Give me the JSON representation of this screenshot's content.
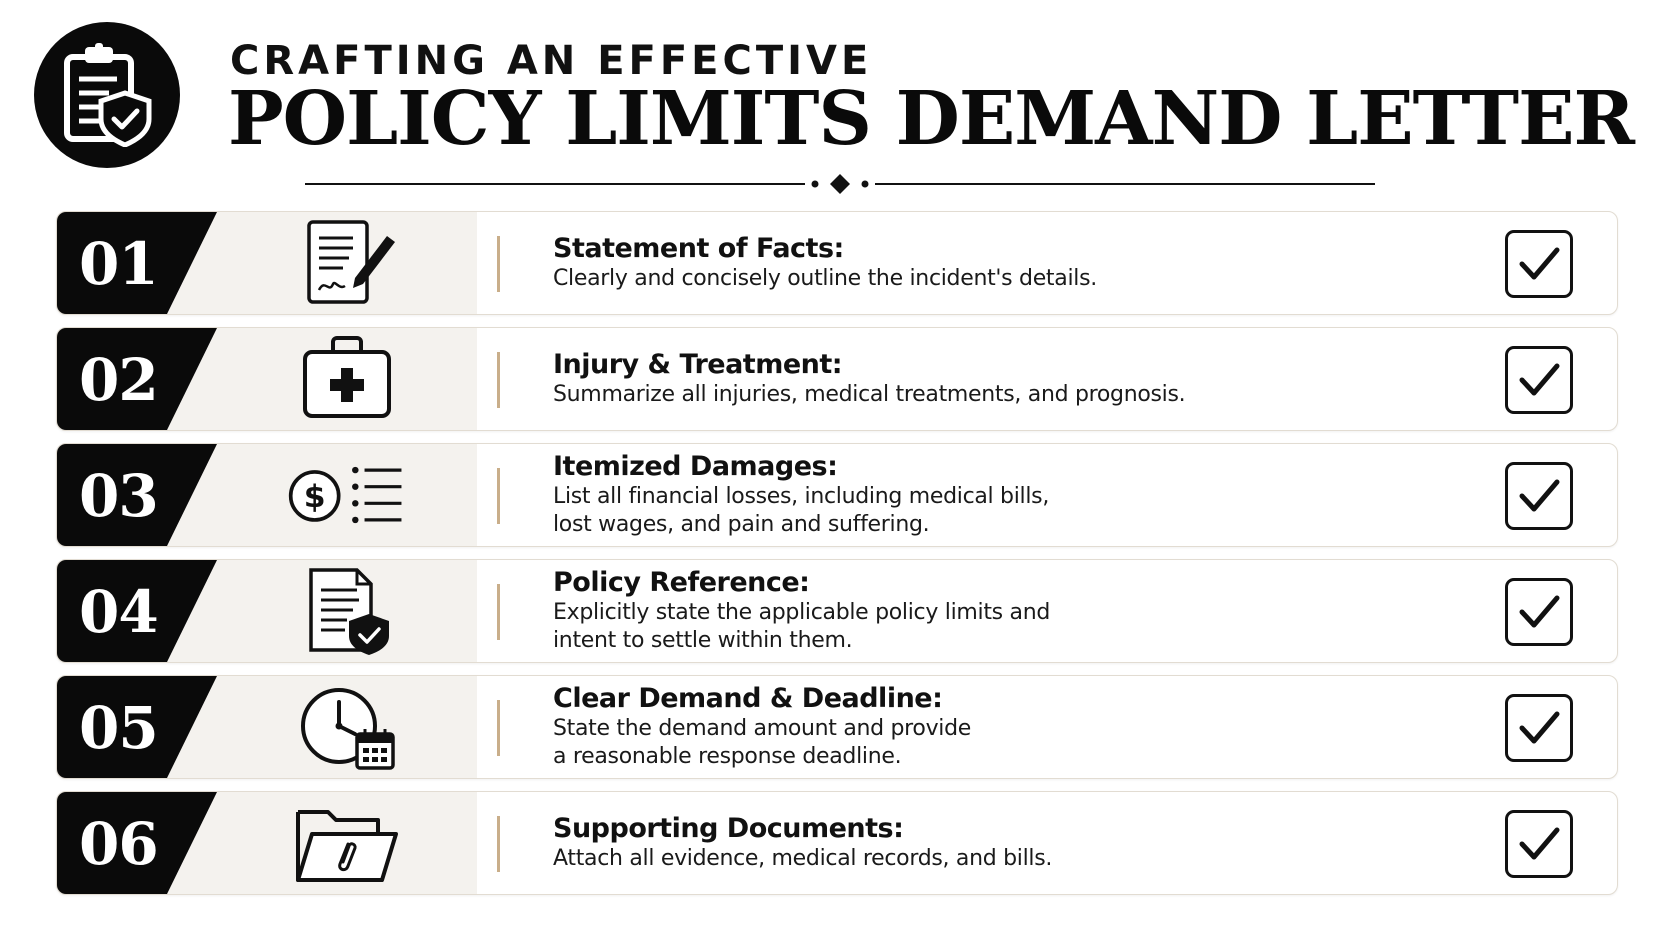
{
  "header": {
    "logo_icon": "clipboard-shield-icon",
    "subtitle": "CRAFTING AN EFFECTIVE",
    "title": "POLICY LIMITS DEMAND LETTER"
  },
  "colors": {
    "primary": "#0a0a0a",
    "accent": "#c9ae8a",
    "row_tint": "#f4f2ee"
  },
  "items": [
    {
      "number": "01",
      "icon": "document-pen-icon",
      "heading": "Statement of Facts:",
      "lines": [
        "Clearly and concisely outline the incident's details."
      ]
    },
    {
      "number": "02",
      "icon": "medical-kit-icon",
      "heading": "Injury & Treatment:",
      "lines": [
        "Summarize all injuries, medical treatments, and prognosis."
      ]
    },
    {
      "number": "03",
      "icon": "dollar-list-icon",
      "heading": "Itemized Damages:",
      "lines": [
        "List all financial losses, including medical bills,",
        "lost wages, and pain and suffering."
      ]
    },
    {
      "number": "04",
      "icon": "document-shield-icon",
      "heading": "Policy Reference:",
      "lines": [
        "Explicitly state the applicable policy limits and",
        "intent to settle within them."
      ]
    },
    {
      "number": "05",
      "icon": "clock-calendar-icon",
      "heading": "Clear Demand & Deadline:",
      "lines": [
        "State the demand amount and provide",
        "a reasonable response deadline."
      ]
    },
    {
      "number": "06",
      "icon": "folder-paperclip-icon",
      "heading": "Supporting Documents:",
      "lines": [
        "Attach all evidence, medical records, and bills."
      ]
    }
  ]
}
